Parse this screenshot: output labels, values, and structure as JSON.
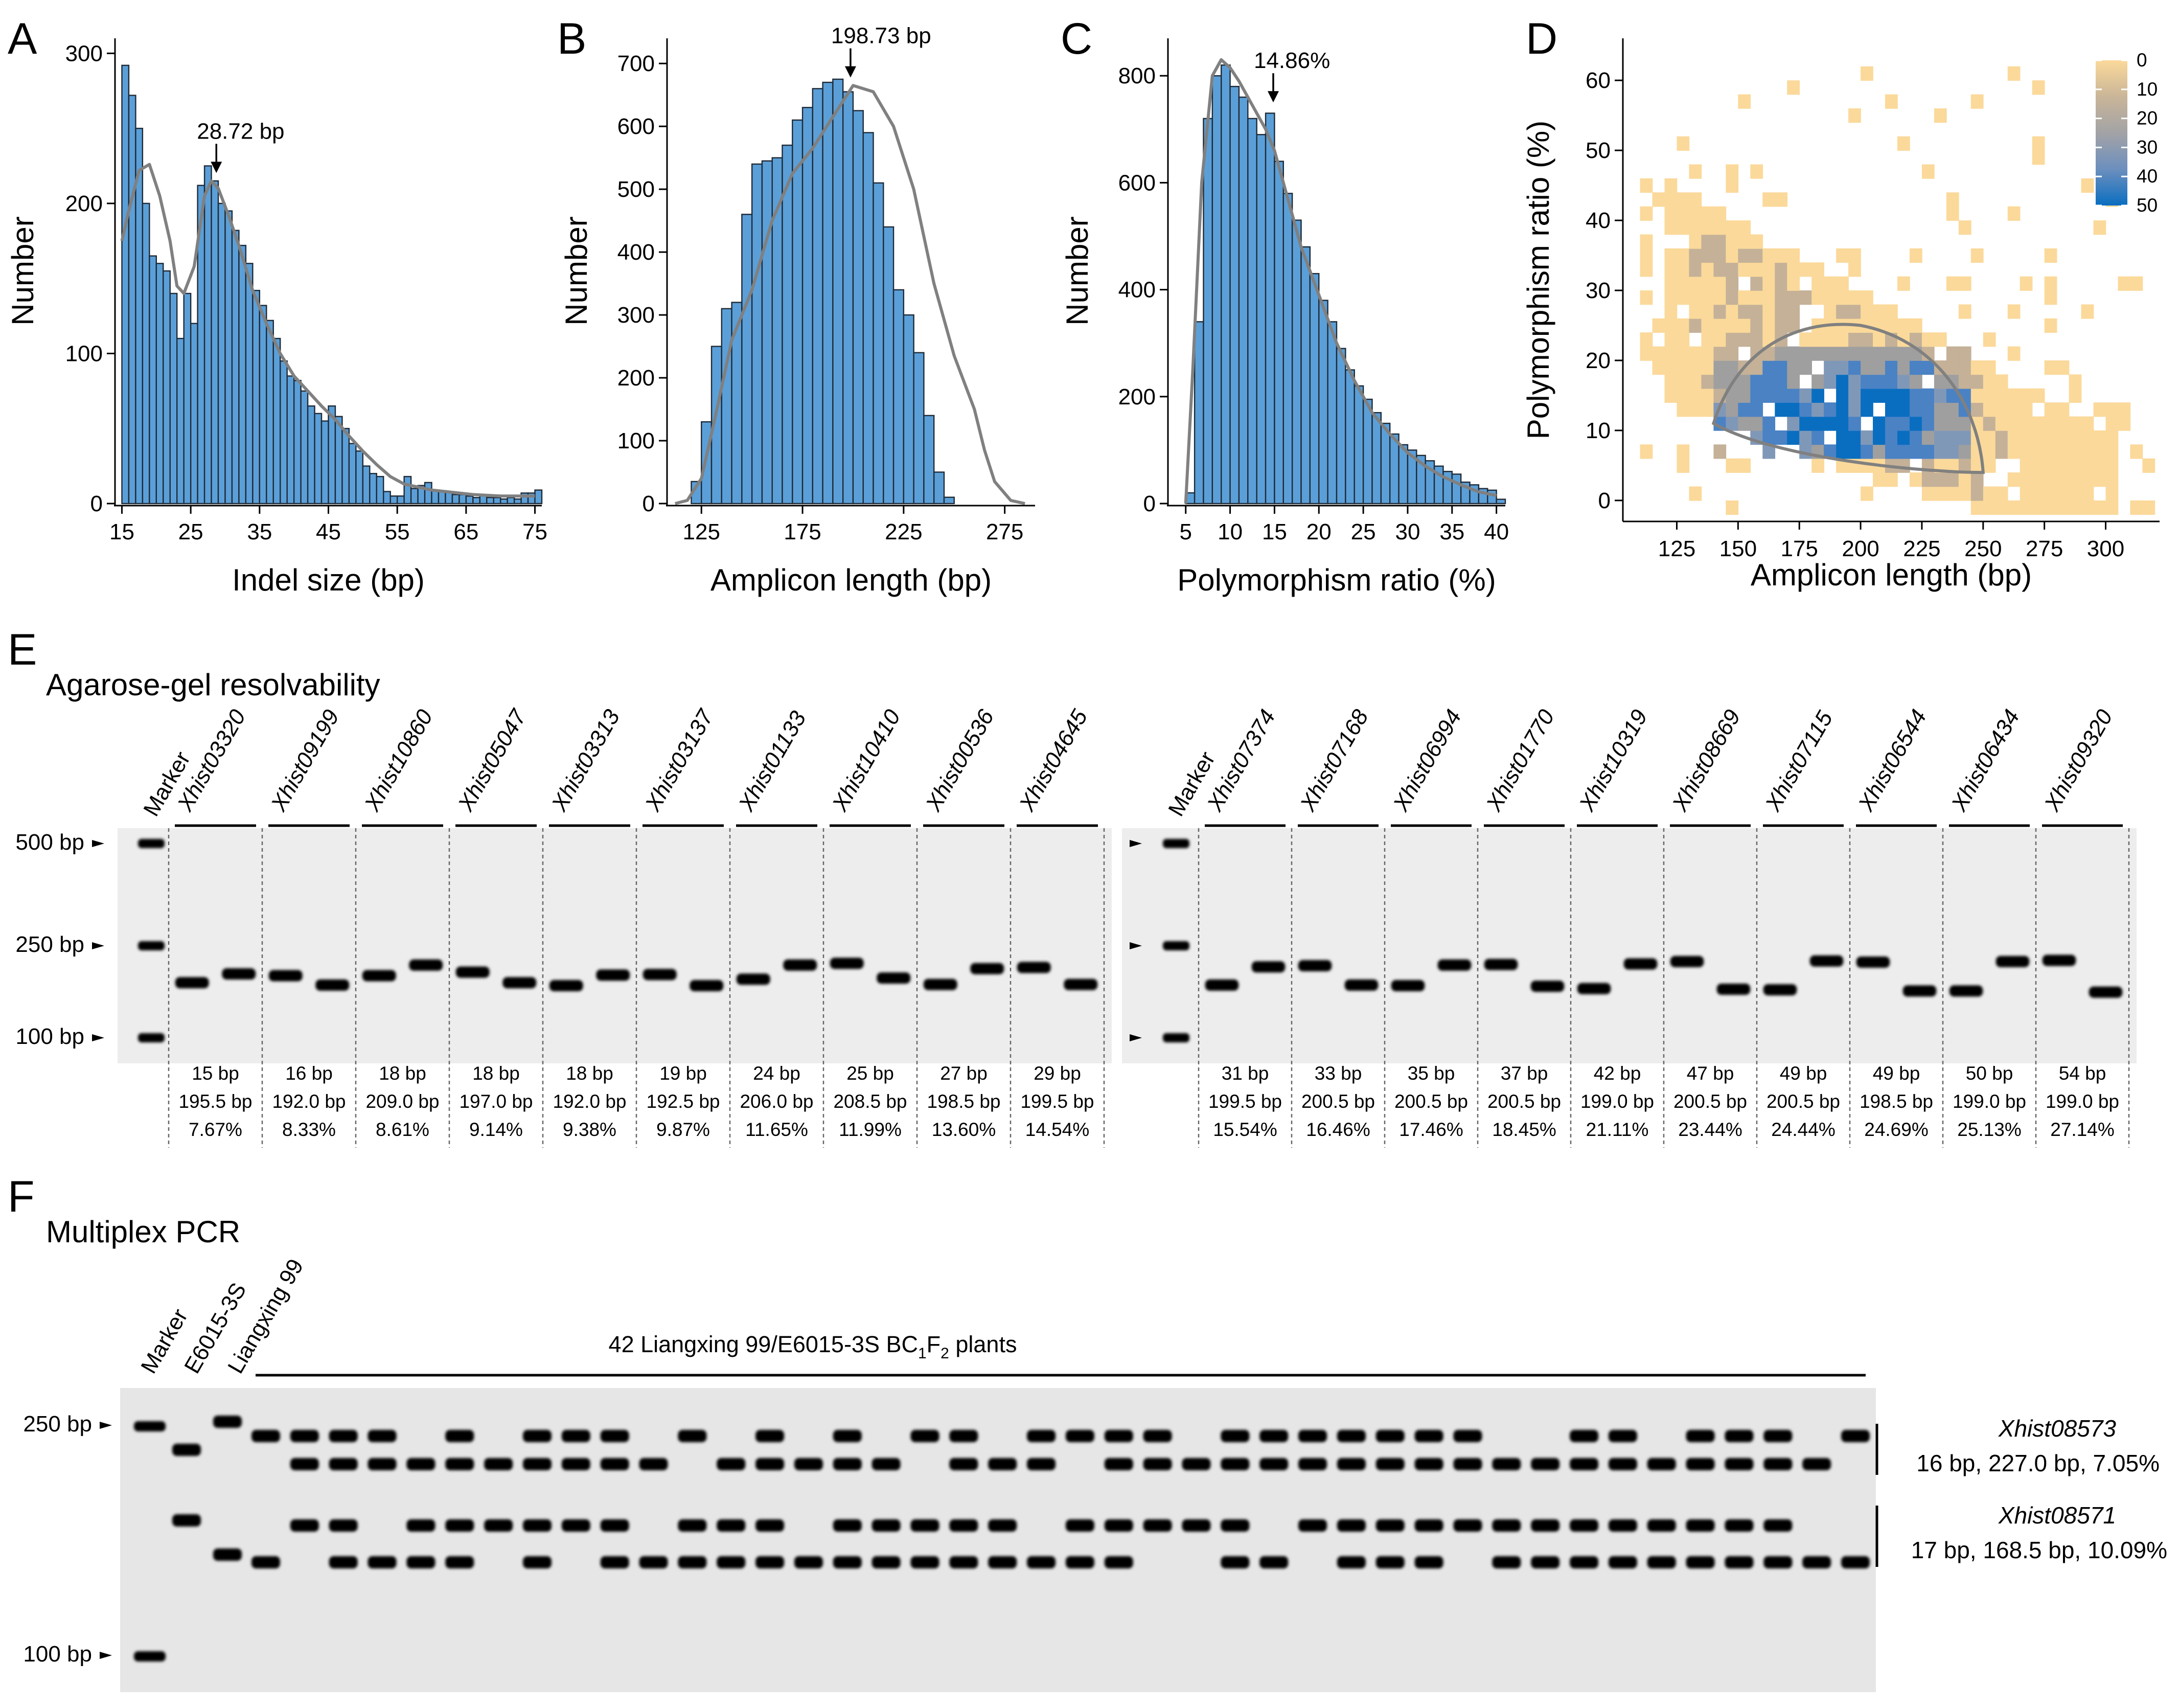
{
  "chart_data": [
    {
      "panel": "A",
      "type": "bar",
      "xlabel": "Indel size (bp)",
      "ylabel": "Number",
      "xlim": [
        14,
        76
      ],
      "ylim": [
        0,
        310
      ],
      "xticks": [
        15,
        25,
        35,
        45,
        55,
        65,
        75
      ],
      "yticks": [
        0,
        100,
        200,
        300
      ],
      "bin_start": 15,
      "bin_width": 1,
      "values": [
        292,
        272,
        250,
        200,
        165,
        160,
        155,
        140,
        110,
        140,
        120,
        212,
        225,
        215,
        200,
        195,
        182,
        172,
        160,
        142,
        132,
        122,
        110,
        95,
        85,
        82,
        75,
        65,
        60,
        55,
        65,
        58,
        50,
        40,
        35,
        25,
        20,
        18,
        8,
        5,
        5,
        18,
        10,
        12,
        14,
        9,
        8,
        8,
        6,
        6,
        5,
        4,
        6,
        4,
        4,
        3,
        4,
        3,
        7,
        7,
        9
      ],
      "curve_x": [
        15,
        16,
        17.5,
        19,
        20.5,
        22,
        23,
        24,
        25.5,
        27,
        28,
        29,
        30.5,
        32,
        34,
        36,
        38,
        40,
        42,
        44,
        46,
        48,
        50,
        52,
        54,
        56,
        58,
        60,
        62,
        64,
        66,
        70,
        75
      ],
      "curve_y": [
        175,
        195,
        222,
        226,
        205,
        175,
        145,
        140,
        158,
        205,
        215,
        210,
        192,
        172,
        142,
        120,
        100,
        85,
        75,
        65,
        56,
        45,
        35,
        26,
        18,
        13,
        11,
        9,
        8,
        7,
        6,
        5,
        5
      ],
      "annotation": {
        "label": "28.72 bp",
        "x": 28.72,
        "y": 238
      }
    },
    {
      "panel": "B",
      "type": "bar",
      "xlabel": "Amplicon length (bp)",
      "ylabel": "Number",
      "xlim": [
        108,
        290
      ],
      "ylim": [
        0,
        740
      ],
      "xticks": [
        125,
        175,
        225,
        275
      ],
      "yticks": [
        0,
        100,
        200,
        300,
        400,
        500,
        600,
        700
      ],
      "bin_start": 120,
      "bin_width": 5,
      "values": [
        35,
        130,
        250,
        310,
        320,
        460,
        540,
        545,
        550,
        570,
        610,
        630,
        660,
        670,
        675,
        655,
        625,
        590,
        510,
        440,
        340,
        300,
        240,
        140,
        50,
        10
      ],
      "curve_x": [
        112,
        118,
        125,
        132,
        140,
        150,
        160,
        170,
        180,
        190,
        200,
        210,
        220,
        230,
        240,
        250,
        260,
        265,
        270,
        278,
        285
      ],
      "curve_y": [
        0,
        5,
        40,
        140,
        260,
        340,
        450,
        525,
        565,
        615,
        665,
        655,
        600,
        500,
        350,
        235,
        150,
        85,
        35,
        5,
        0
      ],
      "annotation": {
        "label": "198.73 bp",
        "x": 198.73,
        "y": 720
      }
    },
    {
      "panel": "C",
      "type": "bar",
      "xlabel": "Polymorphism ratio (%)",
      "ylabel": "Number",
      "xlim": [
        3,
        41
      ],
      "ylim": [
        0,
        870
      ],
      "xticks": [
        5,
        10,
        15,
        20,
        25,
        30,
        35,
        40
      ],
      "yticks": [
        0,
        200,
        400,
        600,
        800
      ],
      "bin_start": 5,
      "bin_width": 1,
      "values": [
        20,
        340,
        720,
        800,
        820,
        780,
        760,
        720,
        690,
        730,
        640,
        580,
        530,
        480,
        430,
        380,
        340,
        290,
        250,
        220,
        195,
        170,
        150,
        130,
        110,
        100,
        90,
        80,
        70,
        60,
        55,
        40,
        35,
        28,
        25,
        8
      ],
      "curve_x": [
        5,
        5.8,
        6.8,
        8,
        9,
        10,
        11,
        12,
        13,
        14,
        15,
        16,
        17,
        18,
        20,
        22,
        24,
        26,
        28,
        30,
        32,
        34,
        36,
        38,
        40
      ],
      "curve_y": [
        0,
        250,
        600,
        800,
        830,
        815,
        790,
        760,
        730,
        700,
        660,
        600,
        540,
        480,
        390,
        300,
        230,
        170,
        130,
        95,
        70,
        50,
        35,
        22,
        15
      ],
      "annotation": {
        "label": "14.86%",
        "x": 14.86,
        "y": 800
      }
    },
    {
      "panel": "D",
      "type": "heatmap",
      "xlabel": "Amplicon length (bp)",
      "ylabel": "Polymorphism ratio (%)",
      "xlim": [
        103,
        322
      ],
      "ylim": [
        -3,
        66
      ],
      "xticks": [
        125,
        150,
        175,
        200,
        225,
        250,
        275,
        300
      ],
      "yticks": [
        0,
        10,
        20,
        30,
        40,
        50,
        60
      ],
      "legend": {
        "title": "",
        "position": "top-right",
        "ticks": [
          0,
          10,
          20,
          30,
          40,
          50
        ],
        "colors": [
          "#fbd99a",
          "#c4b198",
          "#9f9f9f",
          "#8098b8",
          "#4a82c4",
          "#0a6ec0"
        ]
      },
      "ellipse_note": "data density contour"
    }
  ],
  "panels": {
    "E": {
      "letter": "E",
      "title": "Agarose-gel resolvability"
    },
    "F": {
      "letter": "F",
      "title": "Multiplex PCR"
    }
  },
  "gel_e": {
    "marker_label": "Marker",
    "markers": [
      "500 bp",
      "250 bp",
      "100 bp"
    ],
    "left_markers": [
      {
        "name": "Xhist03320",
        "indel": "15 bp",
        "length": "195.5 bp",
        "ratio": "7.67%"
      },
      {
        "name": "Xhist09199",
        "indel": "16 bp",
        "length": "192.0 bp",
        "ratio": "8.33%"
      },
      {
        "name": "Xhist10860",
        "indel": "18 bp",
        "length": "209.0 bp",
        "ratio": "8.61%"
      },
      {
        "name": "Xhist05047",
        "indel": "18 bp",
        "length": "197.0 bp",
        "ratio": "9.14%"
      },
      {
        "name": "Xhist03313",
        "indel": "18 bp",
        "length": "192.0 bp",
        "ratio": "9.38%"
      },
      {
        "name": "Xhist03137",
        "indel": "19 bp",
        "length": "192.5 bp",
        "ratio": "9.87%"
      },
      {
        "name": "Xhist01133",
        "indel": "24 bp",
        "length": "206.0 bp",
        "ratio": "11.65%"
      },
      {
        "name": "Xhist10410",
        "indel": "25 bp",
        "length": "208.5 bp",
        "ratio": "11.99%"
      },
      {
        "name": "Xhist00536",
        "indel": "27 bp",
        "length": "198.5 bp",
        "ratio": "13.60%"
      },
      {
        "name": "Xhist04645",
        "indel": "29 bp",
        "length": "199.5 bp",
        "ratio": "14.54%"
      }
    ],
    "right_markers": [
      {
        "name": "Xhist07374",
        "indel": "31 bp",
        "length": "199.5 bp",
        "ratio": "15.54%"
      },
      {
        "name": "Xhist07168",
        "indel": "33 bp",
        "length": "200.5 bp",
        "ratio": "16.46%"
      },
      {
        "name": "Xhist06994",
        "indel": "35 bp",
        "length": "200.5 bp",
        "ratio": "17.46%"
      },
      {
        "name": "Xhist01770",
        "indel": "37 bp",
        "length": "200.5 bp",
        "ratio": "18.45%"
      },
      {
        "name": "Xhist10319",
        "indel": "42 bp",
        "length": "199.0 bp",
        "ratio": "21.11%"
      },
      {
        "name": "Xhist08669",
        "indel": "47 bp",
        "length": "200.5 bp",
        "ratio": "23.44%"
      },
      {
        "name": "Xhist07115",
        "indel": "49 bp",
        "length": "200.5 bp",
        "ratio": "24.44%"
      },
      {
        "name": "Xhist06544",
        "indel": "49 bp",
        "length": "198.5 bp",
        "ratio": "24.69%"
      },
      {
        "name": "Xhist06434",
        "indel": "50 bp",
        "length": "199.0 bp",
        "ratio": "25.13%"
      },
      {
        "name": "Xhist09320",
        "indel": "54 bp",
        "length": "199.0 bp",
        "ratio": "27.14%"
      }
    ]
  },
  "gel_f": {
    "lane_labels": [
      "Marker",
      "E6015-3S",
      "Liangxing 99"
    ],
    "plants_label_pre": "42 Liangxing 99/E6015-3S BC",
    "plants_sub1": "1",
    "plants_mid": "F",
    "plants_sub2": "2",
    "plants_post": " plants",
    "markers": [
      "250 bp",
      "100 bp"
    ],
    "marker1": {
      "name": "Xhist08573",
      "info": "16 bp, 227.0 bp, 7.05%"
    },
    "marker2": {
      "name": "Xhist08571",
      "info": "17 bp, 168.5 bp, 10.09%"
    },
    "plant_count": 42
  }
}
